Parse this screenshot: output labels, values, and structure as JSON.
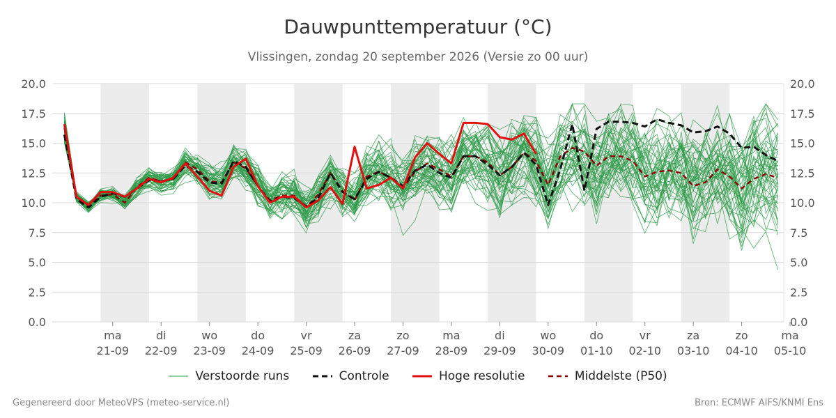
{
  "title": "Dauwpunttemperatuur (°C)",
  "subtitle": "Vlissingen, zondag 20 september 2026 (Versie zo 00 uur)",
  "footer_left": "Gegenereerd door MeteoVPS (meteo-service.nl)",
  "footer_right": "Bron: ECMWF AIFS/KNMI Ens",
  "colors": {
    "ensemble": "#2e9b48",
    "control": "#111111",
    "hires": "#e01010",
    "median": "#8b0000",
    "shade": "#ececec",
    "grid": "#d8d8d8"
  },
  "legend": [
    {
      "key": "ensemble",
      "label": "Verstoorde runs",
      "style": "thin"
    },
    {
      "key": "control",
      "label": "Controle",
      "style": "dashed"
    },
    {
      "key": "hires",
      "label": "Hoge resolutie",
      "style": "solid"
    },
    {
      "key": "median",
      "label": "Middelste (P50)",
      "style": "dashed"
    }
  ],
  "chart_data": {
    "type": "line",
    "ylim": [
      0,
      20
    ],
    "yticks": [
      "0.0",
      "2.5",
      "5.0",
      "7.5",
      "10.0",
      "12.5",
      "15.0",
      "17.5",
      "20.0"
    ],
    "x_unit": "days from 20-09 00:00",
    "xlim": [
      -0.25,
      14.87
    ],
    "day_labels": [
      {
        "x": 1,
        "day": "ma",
        "date": "21-09"
      },
      {
        "x": 2,
        "day": "di",
        "date": "22-09"
      },
      {
        "x": 3,
        "day": "wo",
        "date": "23-09"
      },
      {
        "x": 4,
        "day": "do",
        "date": "24-09"
      },
      {
        "x": 5,
        "day": "vr",
        "date": "25-09"
      },
      {
        "x": 6,
        "day": "za",
        "date": "26-09"
      },
      {
        "x": 7,
        "day": "zo",
        "date": "27-09"
      },
      {
        "x": 8,
        "day": "ma",
        "date": "28-09"
      },
      {
        "x": 9,
        "day": "di",
        "date": "29-09"
      },
      {
        "x": 10,
        "day": "wo",
        "date": "30-09"
      },
      {
        "x": 11,
        "day": "do",
        "date": "01-10"
      },
      {
        "x": 12,
        "day": "vr",
        "date": "02-10"
      },
      {
        "x": 13,
        "day": "za",
        "date": "03-10"
      },
      {
        "x": 14,
        "day": "zo",
        "date": "04-10"
      },
      {
        "x": 15,
        "day": "ma",
        "date": "05-10"
      }
    ],
    "shaded_days": [
      [
        0.75,
        1.75
      ],
      [
        2.75,
        3.75
      ],
      [
        4.75,
        5.75
      ],
      [
        6.75,
        7.75
      ],
      [
        8.75,
        9.75
      ],
      [
        10.75,
        11.75
      ],
      [
        12.75,
        13.75
      ]
    ],
    "series": [
      {
        "name": "Hoge resolutie",
        "key": "hires",
        "x": [
          0.0,
          0.25,
          0.5,
          0.75,
          1.0,
          1.25,
          1.5,
          1.75,
          2.0,
          2.25,
          2.5,
          2.75,
          3.0,
          3.25,
          3.5,
          3.75,
          4.0,
          4.25,
          4.5,
          4.75,
          5.0,
          5.25,
          5.5,
          5.75,
          6.0,
          6.25,
          6.5,
          6.75,
          7.0,
          7.25,
          7.5,
          7.75,
          8.0,
          8.25,
          8.5,
          8.75,
          9.0,
          9.25,
          9.5,
          9.75,
          10.0
        ],
        "values": [
          16.6,
          10.5,
          9.8,
          10.9,
          10.9,
          10.5,
          11.2,
          12.0,
          11.7,
          12.1,
          13.3,
          12.2,
          11.0,
          10.6,
          13.0,
          13.7,
          11.4,
          10.0,
          10.5,
          10.5,
          9.6,
          10.2,
          11.3,
          9.9,
          14.7,
          11.2,
          11.5,
          12.1,
          11.2,
          13.8,
          15.0,
          14.1,
          13.3,
          16.7,
          16.7,
          16.6,
          15.5,
          15.3,
          15.8,
          14.1,
          null
        ]
      },
      {
        "name": "Controle",
        "key": "control",
        "x": [
          0.0,
          0.25,
          0.5,
          0.75,
          1.0,
          1.25,
          1.5,
          1.75,
          2.0,
          2.25,
          2.5,
          2.75,
          3.0,
          3.25,
          3.5,
          3.75,
          4.0,
          4.25,
          4.5,
          4.75,
          5.0,
          5.25,
          5.5,
          5.75,
          6.0,
          6.25,
          6.5,
          6.75,
          7.0,
          7.25,
          7.5,
          7.75,
          8.0,
          8.25,
          8.5,
          8.75,
          9.0,
          9.25,
          9.5,
          9.75,
          10.0,
          10.25,
          10.5,
          10.75,
          11.0,
          11.25,
          11.5,
          11.75,
          12.0,
          12.25,
          12.5,
          12.75,
          13.0,
          13.25,
          13.5,
          13.75,
          14.0,
          14.25,
          14.5,
          14.75
        ],
        "values": [
          15.7,
          10.3,
          9.6,
          10.5,
          10.8,
          10.5,
          11.2,
          11.9,
          11.8,
          12.0,
          13.1,
          12.6,
          11.7,
          11.6,
          13.5,
          13.0,
          11.4,
          10.1,
          10.5,
          10.4,
          9.7,
          10.4,
          12.5,
          10.9,
          10.3,
          12.0,
          12.6,
          12.1,
          11.4,
          12.7,
          13.2,
          12.5,
          12.1,
          13.9,
          13.9,
          13.2,
          12.3,
          13.0,
          14.2,
          13.2,
          9.8,
          12.8,
          16.6,
          11.0,
          16.2,
          16.8,
          16.8,
          16.7,
          16.4,
          17.0,
          16.7,
          16.5,
          15.9,
          16.0,
          16.4,
          15.8,
          14.6,
          14.7,
          14.0,
          13.5
        ]
      },
      {
        "name": "Middelste (P50)",
        "key": "median",
        "x": [
          0.0,
          0.25,
          0.5,
          0.75,
          1.0,
          1.25,
          1.5,
          1.75,
          2.0,
          2.25,
          2.5,
          2.75,
          3.0,
          3.25,
          3.5,
          3.75,
          4.0,
          4.25,
          4.5,
          4.75,
          5.0,
          5.25,
          5.5,
          5.75,
          6.0,
          6.25,
          6.5,
          6.75,
          7.0,
          7.25,
          7.5,
          7.75,
          8.0,
          8.25,
          8.5,
          8.75,
          9.0,
          9.25,
          9.5,
          9.75,
          10.0,
          10.25,
          10.5,
          10.75,
          11.0,
          11.25,
          11.5,
          11.75,
          12.0,
          12.25,
          12.5,
          12.75,
          13.0,
          13.25,
          13.5,
          13.75,
          14.0,
          14.25,
          14.5,
          14.75
        ],
        "values": [
          16.3,
          10.5,
          9.7,
          10.6,
          10.7,
          10.0,
          11.3,
          12.1,
          11.8,
          12.0,
          13.4,
          12.8,
          11.8,
          11.7,
          13.4,
          12.9,
          11.4,
          10.2,
          10.6,
          10.6,
          9.6,
          10.7,
          12.5,
          11.0,
          10.2,
          12.2,
          12.6,
          12.1,
          11.2,
          12.6,
          13.3,
          12.8,
          12.2,
          13.9,
          13.9,
          13.4,
          12.3,
          13.0,
          14.2,
          13.5,
          11.5,
          13.9,
          14.6,
          14.3,
          13.1,
          13.9,
          13.9,
          13.5,
          12.2,
          12.6,
          12.7,
          12.5,
          11.4,
          11.7,
          12.8,
          12.2,
          11.2,
          12.0,
          12.4,
          12.1
        ]
      }
    ],
    "ensemble_count": 50,
    "ensemble_note": ""
  }
}
